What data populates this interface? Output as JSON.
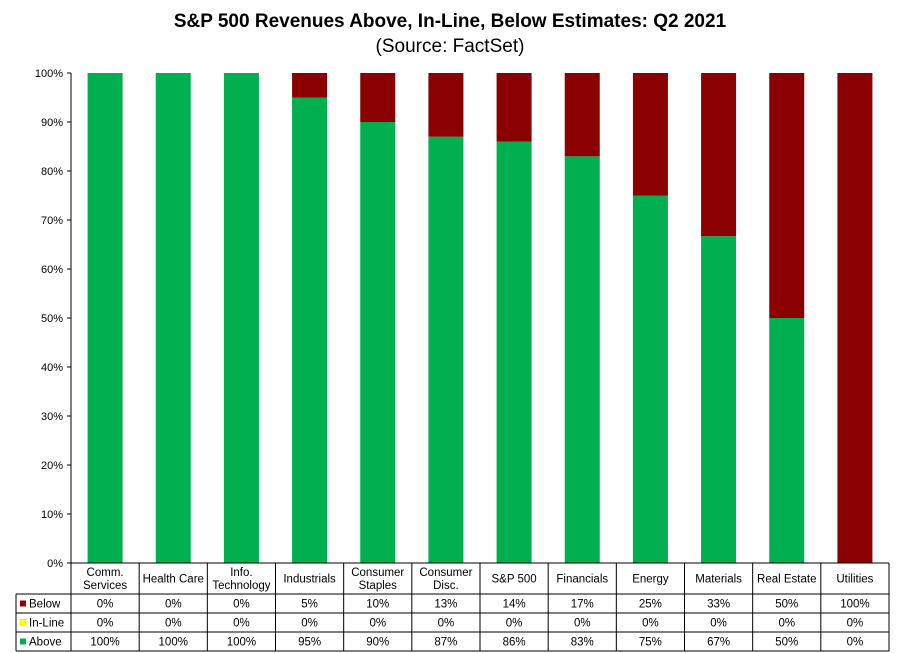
{
  "chart_data": {
    "type": "bar",
    "stacked": true,
    "title": "S&P 500 Revenues Above, In-Line, Below Estimates: Q2 2021",
    "subtitle": "(Source: FactSet)",
    "ylim": [
      0,
      100
    ],
    "yticks": [
      "0%",
      "10%",
      "20%",
      "30%",
      "40%",
      "50%",
      "60%",
      "70%",
      "80%",
      "90%",
      "100%"
    ],
    "categories": [
      [
        "Comm.",
        "Services"
      ],
      [
        "Health Care"
      ],
      [
        "Info.",
        "Technology"
      ],
      [
        "Industrials"
      ],
      [
        "Consumer",
        "Staples"
      ],
      [
        "Consumer",
        "Disc."
      ],
      [
        "S&P 500"
      ],
      [
        "Financials"
      ],
      [
        "Energy"
      ],
      [
        "Materials"
      ],
      [
        "Real Estate"
      ],
      [
        "Utilities"
      ]
    ],
    "series": [
      {
        "name": "Below",
        "color": "#8b0000",
        "values": [
          0,
          0,
          0,
          5,
          10,
          13,
          14,
          17,
          25,
          33.3,
          50,
          100
        ],
        "labels": [
          "0%",
          "0%",
          "0%",
          "5%",
          "10%",
          "13%",
          "14%",
          "17%",
          "25%",
          "33%",
          "50%",
          "100%"
        ]
      },
      {
        "name": "In-Line",
        "color": "#ffff00",
        "values": [
          0,
          0,
          0,
          0,
          0,
          0,
          0,
          0,
          0,
          0,
          0,
          0
        ],
        "labels": [
          "0%",
          "0%",
          "0%",
          "0%",
          "0%",
          "0%",
          "0%",
          "0%",
          "0%",
          "0%",
          "0%",
          "0%"
        ]
      },
      {
        "name": "Above",
        "color": "#00b050",
        "values": [
          100,
          100,
          100,
          95,
          90,
          87,
          86,
          83,
          75,
          66.7,
          50,
          0
        ],
        "labels": [
          "100%",
          "100%",
          "100%",
          "95%",
          "90%",
          "87%",
          "86%",
          "83%",
          "75%",
          "67%",
          "50%",
          "0%"
        ]
      }
    ],
    "stack_order": [
      "Above",
      "In-Line",
      "Below"
    ],
    "grid": false,
    "legend": "data-table"
  }
}
